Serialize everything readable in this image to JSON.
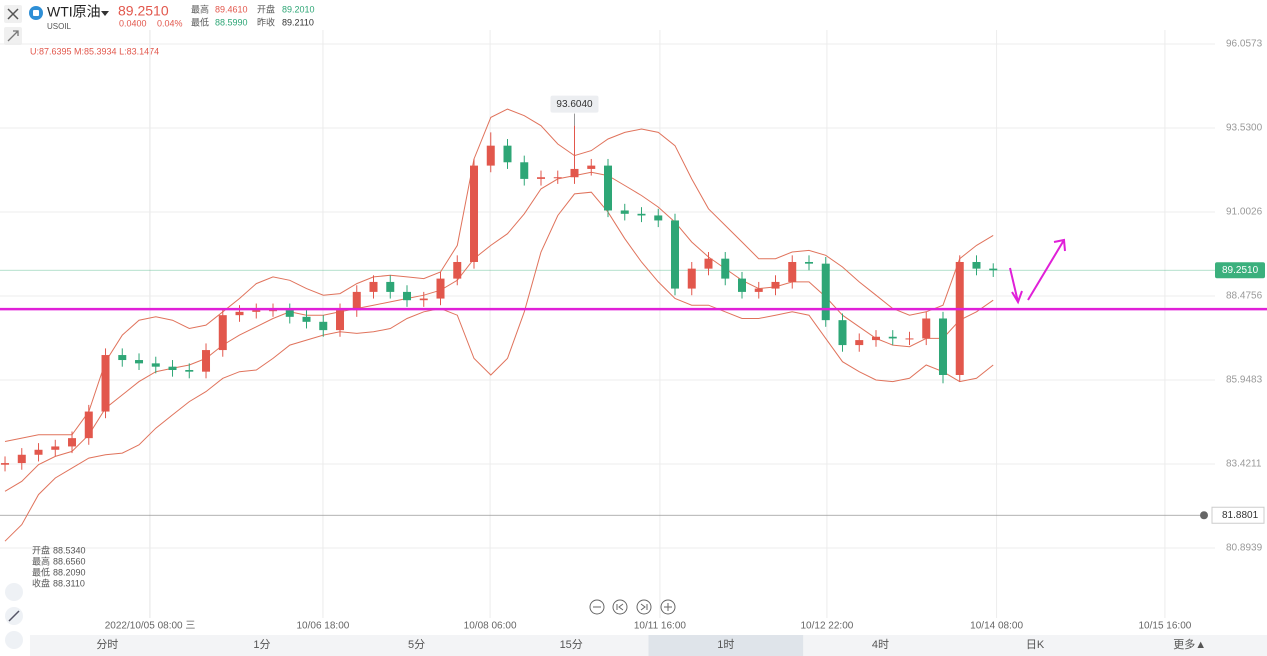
{
  "header": {
    "name": "WTI原油",
    "symbol": "USOIL",
    "price": "89.2510",
    "change": "0.0400",
    "change_pct": "0.04%",
    "high_label": "最高",
    "high": "89.4610",
    "open_label": "开盘",
    "open": "89.2010",
    "low_label": "最低",
    "low": "88.5990",
    "prev_label": "昨收",
    "prev": "89.2110",
    "indicator": "U:87.6395  M:85.3934  L:83.1474"
  },
  "cursor_info": [
    {
      "label": "开盘",
      "value": "88.5340"
    },
    {
      "label": "最高",
      "value": "88.6560"
    },
    {
      "label": "最低",
      "value": "88.2090"
    },
    {
      "label": "收盘",
      "value": "88.3110"
    }
  ],
  "tabs": [
    "分时",
    "1分",
    "5分",
    "15分",
    "1时",
    "4时",
    "日K",
    "更多▲"
  ],
  "active_tab": 4,
  "chart_data": {
    "type": "candlestick",
    "up_color": "#e2574c",
    "down_color": "#2ea676",
    "xlim": [
      -0.3,
      72.24
    ],
    "xticks": [
      {
        "value": 8.66,
        "label": "2022/10/05 08:00 三"
      },
      {
        "value": 18.98,
        "label": "10/06 18:00"
      },
      {
        "value": 28.96,
        "label": "10/08 06:00"
      },
      {
        "value": 39.1,
        "label": "10/11 16:00"
      },
      {
        "value": 49.07,
        "label": "10/12 22:00"
      },
      {
        "value": 59.2,
        "label": "10/14 08:00"
      },
      {
        "value": 69.25,
        "label": "10/15 16:00"
      }
    ],
    "ylim": [
      79.33,
      96.48
    ],
    "yticks": [
      {
        "value": 96.0573,
        "label": "96.0573"
      },
      {
        "value": 93.53,
        "label": "93.5300"
      },
      {
        "value": 91.0026,
        "label": "91.0026"
      },
      {
        "value": 88.4756,
        "label": "88.4756"
      },
      {
        "value": 85.9483,
        "label": "85.9483"
      },
      {
        "value": 83.4211,
        "label": "83.4211"
      },
      {
        "value": 80.8939,
        "label": "80.8939"
      }
    ],
    "grid": true,
    "candles": {
      "open": [
        83.4,
        83.45,
        83.7,
        83.85,
        83.95,
        84.2,
        85.0,
        86.7,
        86.55,
        86.45,
        86.35,
        86.25,
        86.2,
        86.85,
        87.9,
        88.0,
        88.05,
        88.05,
        87.85,
        87.7,
        87.45,
        88.05,
        88.6,
        88.9,
        88.6,
        88.35,
        88.4,
        89.0,
        89.5,
        92.4,
        93.0,
        92.5,
        92.0,
        92.05,
        92.05,
        92.3,
        92.4,
        91.05,
        90.95,
        90.9,
        90.75,
        88.7,
        89.3,
        89.6,
        89.0,
        88.6,
        88.7,
        88.9,
        89.5,
        89.45,
        87.75,
        87.0,
        87.15,
        87.25,
        87.2,
        87.2,
        87.8,
        86.1,
        89.5,
        89.3
      ],
      "high": [
        83.65,
        83.9,
        84.05,
        84.15,
        84.4,
        85.2,
        86.9,
        86.9,
        86.75,
        86.65,
        86.55,
        86.45,
        87.05,
        88.1,
        88.2,
        88.25,
        88.25,
        88.25,
        88.05,
        87.9,
        88.25,
        88.8,
        89.1,
        89.1,
        88.8,
        88.6,
        89.2,
        89.7,
        92.6,
        93.4,
        93.2,
        92.7,
        92.25,
        92.25,
        93.604,
        92.6,
        92.6,
        91.25,
        91.15,
        91.1,
        90.95,
        89.5,
        89.8,
        89.8,
        89.2,
        88.9,
        89.1,
        89.7,
        89.7,
        89.65,
        87.95,
        87.35,
        87.45,
        87.45,
        87.4,
        88.0,
        88.0,
        89.7,
        89.7,
        89.461
      ],
      "low": [
        83.2,
        83.25,
        83.5,
        83.65,
        83.75,
        84.0,
        84.8,
        86.35,
        86.25,
        86.15,
        86.05,
        86.0,
        86.0,
        86.65,
        87.7,
        87.8,
        87.85,
        87.65,
        87.5,
        87.25,
        87.25,
        87.85,
        88.4,
        88.4,
        88.15,
        88.15,
        88.2,
        88.8,
        89.3,
        92.2,
        92.3,
        91.8,
        91.8,
        91.85,
        91.85,
        92.1,
        90.85,
        90.75,
        90.7,
        90.55,
        88.5,
        88.5,
        89.1,
        88.8,
        88.4,
        88.4,
        88.5,
        88.7,
        89.25,
        87.55,
        86.8,
        86.8,
        86.95,
        87.0,
        87.0,
        87.0,
        85.85,
        85.9,
        89.1,
        89.05
      ],
      "close": [
        83.45,
        83.7,
        83.85,
        83.95,
        84.2,
        85.0,
        86.7,
        86.55,
        86.45,
        86.35,
        86.25,
        86.2,
        86.85,
        87.9,
        88.0,
        88.05,
        88.05,
        87.85,
        87.7,
        87.45,
        88.05,
        88.6,
        88.9,
        88.6,
        88.35,
        88.4,
        89.0,
        89.5,
        92.4,
        93.0,
        92.5,
        92.0,
        92.05,
        92.05,
        92.3,
        92.4,
        91.05,
        90.95,
        90.9,
        90.75,
        88.7,
        89.3,
        89.6,
        89.0,
        88.6,
        88.7,
        88.9,
        89.5,
        89.45,
        87.75,
        87.0,
        87.15,
        87.25,
        87.2,
        87.2,
        87.8,
        86.1,
        89.5,
        89.3,
        89.251
      ]
    },
    "peak": {
      "index": 34,
      "label": "93.6040"
    },
    "bands": {
      "color": "#e0735c",
      "upper": [
        84.1,
        84.2,
        84.3,
        84.3,
        84.3,
        85.0,
        86.5,
        87.3,
        87.75,
        87.85,
        87.75,
        87.5,
        87.6,
        88.0,
        88.4,
        88.85,
        89.05,
        88.95,
        88.7,
        88.5,
        88.55,
        88.85,
        89.05,
        89.1,
        89.05,
        89.0,
        89.2,
        90.0,
        92.6,
        93.85,
        94.1,
        93.9,
        93.6,
        93.05,
        92.7,
        92.85,
        93.2,
        93.4,
        93.5,
        93.4,
        93.0,
        92.0,
        91.1,
        90.6,
        90.1,
        89.6,
        89.6,
        89.8,
        89.85,
        89.7,
        89.35,
        88.9,
        88.5,
        88.1,
        87.9,
        88.0,
        88.2,
        89.6,
        90.0,
        90.3
      ],
      "middle": [
        82.6,
        82.9,
        83.4,
        83.65,
        83.8,
        84.3,
        85.1,
        85.5,
        85.9,
        86.2,
        86.3,
        86.4,
        86.6,
        87.0,
        87.3,
        87.55,
        87.8,
        88.0,
        87.9,
        87.9,
        88.0,
        88.1,
        88.2,
        88.3,
        88.4,
        88.5,
        88.65,
        88.95,
        89.6,
        90.0,
        90.35,
        90.95,
        91.7,
        92.0,
        92.1,
        92.2,
        92.1,
        91.8,
        91.5,
        91.15,
        90.7,
        90.1,
        89.65,
        89.3,
        88.95,
        88.7,
        88.75,
        88.9,
        88.9,
        88.45,
        87.9,
        87.55,
        87.2,
        87.0,
        86.95,
        87.2,
        87.2,
        87.75,
        88.0,
        88.35
      ],
      "lower": [
        81.1,
        81.6,
        82.5,
        83.0,
        83.3,
        83.6,
        83.7,
        83.75,
        84.0,
        84.5,
        84.9,
        85.3,
        85.6,
        86.0,
        86.2,
        86.25,
        86.6,
        87.0,
        87.15,
        87.3,
        87.4,
        87.35,
        87.4,
        87.5,
        87.8,
        88.0,
        88.1,
        87.9,
        86.6,
        86.1,
        86.6,
        88.0,
        89.8,
        90.9,
        91.55,
        91.6,
        91.0,
        90.2,
        89.5,
        88.9,
        88.4,
        88.2,
        88.2,
        88.0,
        87.8,
        87.8,
        87.9,
        88.0,
        87.9,
        87.2,
        86.5,
        86.2,
        85.95,
        85.9,
        86.0,
        86.4,
        86.2,
        85.9,
        86.0,
        86.4
      ]
    },
    "support_line": {
      "value": 88.08,
      "color": "#e020d8"
    },
    "price_line": {
      "value": 89.251,
      "label": "89.2510",
      "color": "#3bb07d"
    },
    "alert_line": {
      "value": 81.8801,
      "label": "81.8801"
    }
  }
}
